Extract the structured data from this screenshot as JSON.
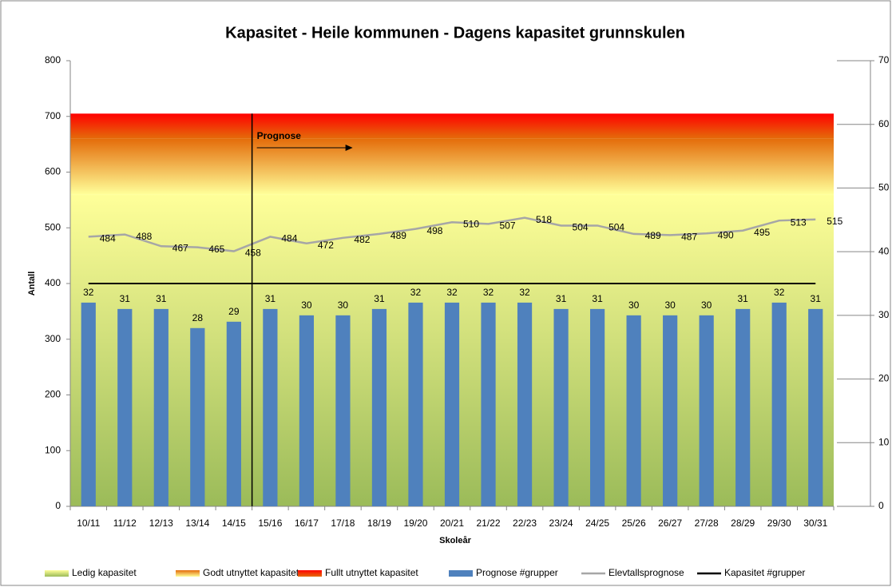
{
  "chart_data": {
    "type": "bar",
    "title": "Kapasitet - Heile kommunen - Dagens kapasitet grunnskulen",
    "x_label": "Skoleår",
    "y_label": "Antall",
    "annotation": "Prognose",
    "categories": [
      "10/11",
      "11/12",
      "12/13",
      "13/14",
      "14/15",
      "15/16",
      "16/17",
      "17/18",
      "18/19",
      "19/20",
      "20/21",
      "21/22",
      "22/23",
      "23/24",
      "24/25",
      "25/26",
      "26/27",
      "27/28",
      "28/29",
      "29/30",
      "30/31"
    ],
    "ylim": [
      0,
      800
    ],
    "yticks": [
      0,
      100,
      200,
      300,
      400,
      500,
      600,
      700,
      800
    ],
    "y2lim": [
      0,
      70
    ],
    "y2ticks": [
      0,
      10,
      20,
      30,
      40,
      50,
      60,
      70
    ],
    "bands": [
      {
        "name": "Ledig kapasitet",
        "colors": [
          "#9bbb59",
          "#ffff99"
        ],
        "value": 560
      },
      {
        "name": "Godt utnyttet kapasitet",
        "colors": [
          "#ffff99",
          "#e46c0a"
        ],
        "value": 100
      },
      {
        "name": "Fullt utnyttet kapasitet",
        "colors": [
          "#e46c0a",
          "#ff0000"
        ],
        "value": 45
      }
    ],
    "series": [
      {
        "name": "Prognose #grupper",
        "type": "bar",
        "axis": "y2",
        "color": "#4f81bd",
        "values": [
          32,
          31,
          31,
          28,
          29,
          31,
          30,
          30,
          31,
          32,
          32,
          32,
          32,
          31,
          31,
          30,
          30,
          30,
          31,
          32,
          31
        ]
      },
      {
        "name": "Elevtallsprognose",
        "type": "line",
        "color": "#a6a6a6",
        "values": [
          484,
          488,
          467,
          465,
          458,
          484,
          472,
          482,
          489,
          498,
          510,
          507,
          518,
          504,
          504,
          489,
          487,
          490,
          495,
          513,
          515
        ]
      },
      {
        "name": "Kapasitet #grupper",
        "type": "line",
        "axis": "y2",
        "color": "#000000",
        "values": [
          35,
          35,
          35,
          35,
          35,
          35,
          35,
          35,
          35,
          35,
          35,
          35,
          35,
          35,
          35,
          35,
          35,
          35,
          35,
          35,
          35
        ]
      }
    ]
  }
}
